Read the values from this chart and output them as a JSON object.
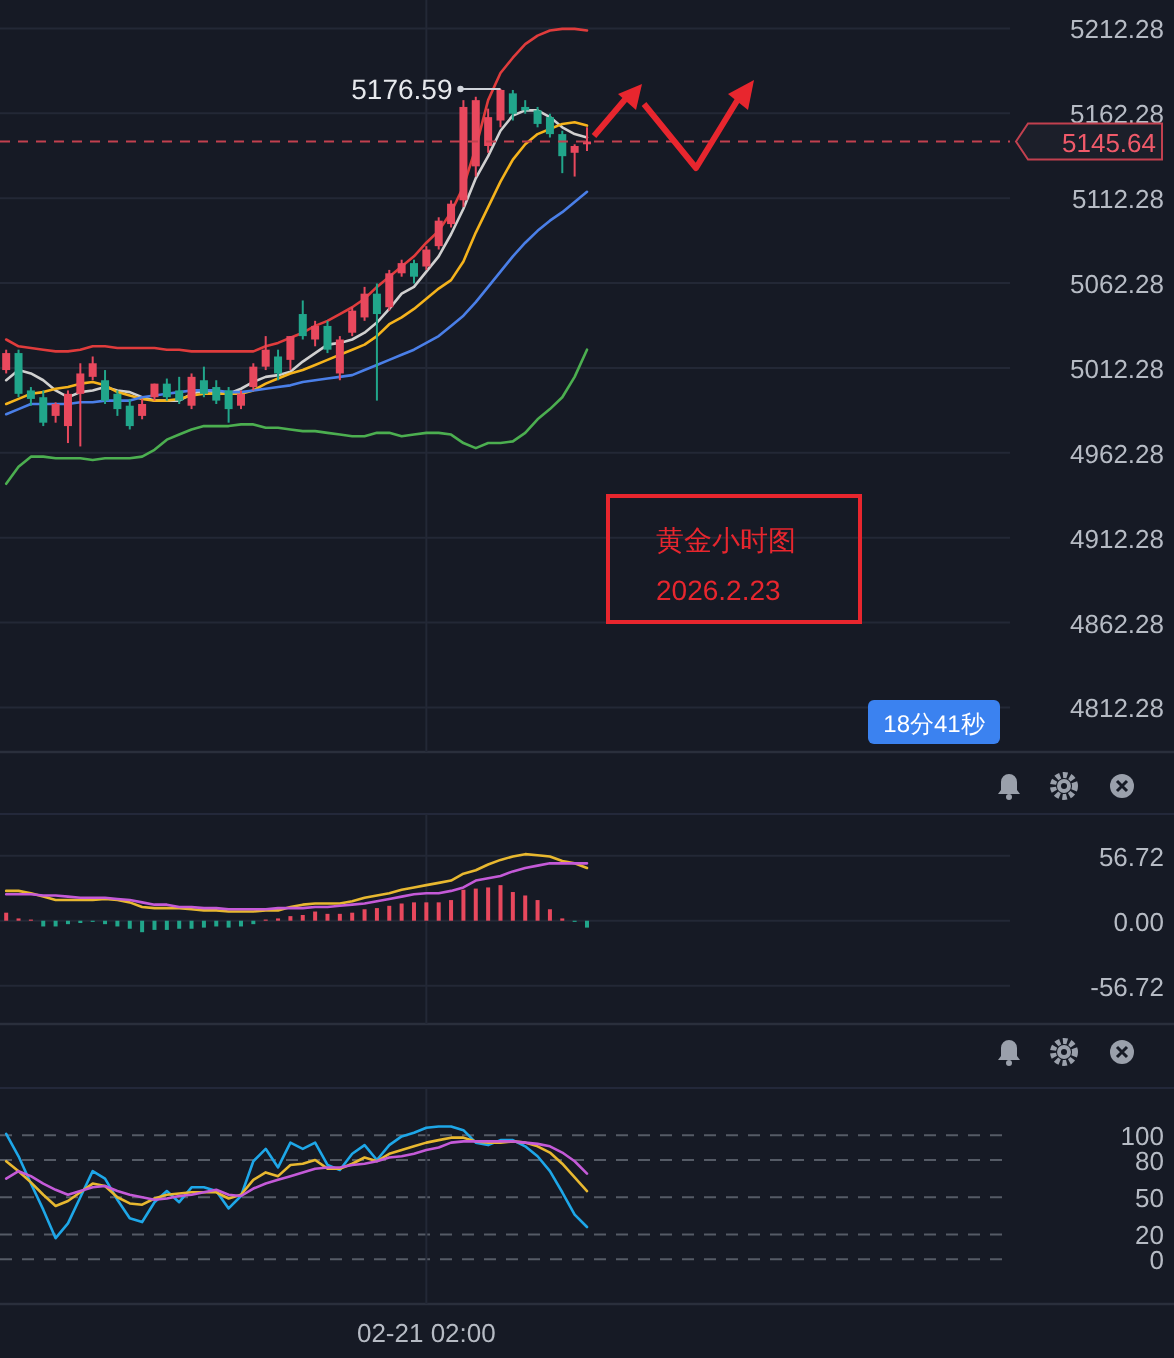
{
  "chart_data": [
    {
      "type": "candlestick",
      "tick_labels": "y",
      "grid": true,
      "categories": [
        null,
        null,
        null,
        null,
        null,
        null,
        null,
        null,
        null,
        null,
        null,
        null,
        null,
        null,
        null,
        null,
        null,
        null,
        null,
        null,
        null,
        null,
        null,
        null,
        null,
        null,
        null,
        null,
        null,
        null,
        null,
        null,
        null,
        null,
        null,
        null,
        null,
        null,
        null,
        null,
        null,
        null,
        null,
        null,
        null,
        null,
        null,
        null,
        null,
        null,
        null,
        null,
        null,
        null,
        null,
        null,
        null,
        null,
        null,
        null,
        null,
        null,
        null,
        null,
        null,
        null,
        null,
        null,
        null,
        null,
        null,
        null,
        null,
        null,
        null,
        null,
        null,
        null,
        null,
        null,
        null,
        null,
        null,
        null,
        null,
        null,
        null,
        null,
        null,
        null,
        null,
        null,
        null,
        null,
        null
      ],
      "ohlc": [
        [
          5011,
          5023,
          5009,
          5021
        ],
        [
          5021,
          5023,
          4995,
          4997
        ],
        [
          4999,
          5001,
          4990,
          4994
        ],
        [
          4995,
          4999,
          4978,
          4980
        ],
        [
          4984,
          4992,
          4980,
          4991
        ],
        [
          4978,
          4999,
          4968,
          4997
        ],
        [
          4997,
          5015,
          4966,
          5009
        ],
        [
          5007,
          5019,
          5005,
          5015
        ],
        [
          5005,
          5011,
          4991,
          4993
        ],
        [
          4997,
          4999,
          4984,
          4988
        ],
        [
          4990,
          4994,
          4976,
          4978
        ],
        [
          4984,
          4994,
          4982,
          4991
        ],
        [
          4995,
          5003,
          4993,
          5003
        ],
        [
          5003,
          5006,
          4993,
          4995
        ],
        [
          4999,
          5007,
          4991,
          4993
        ],
        [
          4990,
          5009,
          4988,
          5007
        ],
        [
          5005,
          5013,
          4995,
          4997
        ],
        [
          5001,
          5005,
          4991,
          4993
        ],
        [
          4999,
          5001,
          4980,
          4988
        ],
        [
          4990,
          4999,
          4988,
          4997
        ],
        [
          5001,
          5015,
          4999,
          5013
        ],
        [
          5013,
          5031,
          5011,
          5023
        ],
        [
          5019,
          5023,
          5005,
          5009
        ],
        [
          5017,
          5031,
          5011,
          5031
        ],
        [
          5044,
          5052,
          5029,
          5031
        ],
        [
          5029,
          5040,
          5025,
          5037
        ],
        [
          5037,
          5040,
          5021,
          5023
        ],
        [
          5009,
          5031,
          5005,
          5029
        ],
        [
          5033,
          5048,
          5031,
          5046
        ],
        [
          5042,
          5060,
          5040,
          5056
        ],
        [
          5056,
          5062,
          4993,
          5044
        ],
        [
          5048,
          5070,
          5046,
          5068
        ],
        [
          5068,
          5076,
          5066,
          5074
        ],
        [
          5074,
          5076,
          5062,
          5066
        ],
        [
          5072,
          5084,
          5070,
          5082
        ],
        [
          5084,
          5101,
          5082,
          5099
        ],
        [
          5097,
          5111,
          5095,
          5109
        ],
        [
          5111,
          5170,
          5107,
          5166
        ],
        [
          5131,
          5172,
          5125,
          5170
        ],
        [
          5143,
          5165,
          5139,
          5160
        ],
        [
          5158,
          5176.59,
          5154,
          5176
        ],
        [
          5174,
          5176,
          5158,
          5162
        ],
        [
          5166,
          5170,
          5162,
          5164
        ],
        [
          5164,
          5166,
          5154,
          5156
        ],
        [
          5160,
          5162,
          5148,
          5150
        ],
        [
          5150,
          5152,
          5127,
          5137
        ],
        [
          5139,
          5144,
          5125,
          5143
        ],
        [
          5144,
          5154,
          5140,
          5145.64
        ],
        null,
        null,
        null,
        null,
        null,
        null,
        null,
        null,
        null,
        null,
        null,
        null,
        null,
        null,
        null,
        null,
        null,
        null,
        null,
        null,
        null,
        null,
        null,
        null,
        null,
        null,
        null,
        null,
        null,
        null,
        null,
        null,
        null,
        null,
        null,
        null,
        null,
        null,
        null,
        null,
        null,
        null,
        null,
        null,
        null,
        null,
        null
      ],
      "colors": [
        "#e8485d",
        "#21a68b",
        "#21a68b",
        "#21a68b",
        "#e8485d",
        "#e8485d",
        "#e8485d",
        "#e8485d",
        "#21a68b",
        "#21a68b",
        "#21a68b",
        "#e8485d",
        "#e8485d",
        "#21a68b",
        "#21a68b",
        "#e8485d",
        "#21a68b",
        "#21a68b",
        "#21a68b",
        "#e8485d",
        "#e8485d",
        "#e8485d",
        "#21a68b",
        "#e8485d",
        "#21a68b",
        "#e8485d",
        "#21a68b",
        "#e8485d",
        "#e8485d",
        "#e8485d",
        "#21a68b",
        "#e8485d",
        "#e8485d",
        "#21a68b",
        "#e8485d",
        "#e8485d",
        "#e8485d",
        "#e8485d",
        "#e8485d",
        "#e8485d",
        "#e8485d",
        "#21a68b",
        "#21a68b",
        "#21a68b",
        "#21a68b",
        "#21a68b",
        "#e8485d",
        "#e8485d",
        null,
        null,
        null,
        null,
        null,
        null,
        null,
        null,
        null,
        null,
        null,
        null,
        null,
        null,
        null,
        null,
        null,
        null,
        null,
        null,
        null,
        null,
        null,
        null,
        null,
        null,
        null,
        null,
        null,
        null,
        null,
        null,
        null,
        null,
        null,
        null,
        null,
        null,
        null,
        null,
        null,
        null,
        null,
        null,
        null,
        null,
        null
      ],
      "series": [
        {
          "type": "line",
          "color": "#e03c3c",
          "values": [
            5029,
            5025,
            5024,
            5023,
            5022,
            5022,
            5023,
            5025,
            5025,
            5024,
            5024,
            5024,
            5024,
            5023,
            5023,
            5022,
            5022,
            5022,
            5022,
            5022,
            5022,
            5025,
            5027,
            5030,
            5033,
            5037,
            5040,
            5044,
            5048,
            5053,
            5060,
            5066,
            5072,
            5078,
            5086,
            5093,
            5104,
            5119,
            5142,
            5170,
            5186,
            5195,
            5203,
            5208,
            5211,
            5212,
            5212,
            5211,
            null,
            null,
            null,
            null,
            null,
            null,
            null,
            null,
            null,
            null,
            null,
            null,
            null,
            null,
            null,
            null,
            null,
            null,
            null,
            null,
            null,
            null,
            null,
            null,
            null,
            null,
            null,
            null,
            null,
            null,
            null,
            null,
            null,
            null,
            null,
            null,
            null,
            null,
            null,
            null,
            null,
            null,
            null,
            null,
            null,
            null,
            null
          ]
        },
        {
          "type": "line",
          "color": "#4caf50",
          "values": [
            4944,
            4954,
            4960,
            4960,
            4959,
            4959,
            4959,
            4958,
            4959,
            4959,
            4959,
            4960,
            4964,
            4970,
            4973,
            4976,
            4978,
            4978,
            4978,
            4979,
            4979,
            4977,
            4977,
            4976,
            4975,
            4975,
            4974,
            4973,
            4972,
            4972,
            4974,
            4974,
            4972,
            4973,
            4974,
            4974,
            4973,
            4968,
            4965,
            4968,
            4968,
            4969,
            4974,
            4982,
            4988,
            4995,
            5007,
            5023,
            null,
            null,
            null,
            null,
            null,
            null,
            null,
            null,
            null,
            null,
            null,
            null,
            null,
            null,
            null,
            null,
            null,
            null,
            null,
            null,
            null,
            null,
            null,
            null,
            null,
            null,
            null,
            null,
            null,
            null,
            null,
            null,
            null,
            null,
            null,
            null,
            null,
            null,
            null,
            null,
            null,
            null,
            null,
            null,
            null,
            null,
            null
          ]
        },
        {
          "type": "line",
          "color": "#d0d0d0",
          "values": [
            5005,
            5011,
            5009,
            5005,
            4999,
            4995,
            4998,
            4999,
            5001,
            4999,
            4998,
            4995,
            4993,
            4993,
            4993,
            4997,
            4999,
            4998,
            4997,
            5000,
            5004,
            5007,
            5008,
            5010,
            5016,
            5021,
            5026,
            5027,
            5029,
            5033,
            5039,
            5047,
            5056,
            5060,
            5069,
            5078,
            5091,
            5106,
            5124,
            5137,
            5152,
            5161,
            5164,
            5164,
            5160,
            5154,
            5150,
            5148,
            null,
            null,
            null,
            null,
            null,
            null,
            null,
            null,
            null,
            null,
            null,
            null,
            null,
            null,
            null,
            null,
            null,
            null,
            null,
            null,
            null,
            null,
            null,
            null,
            null,
            null,
            null,
            null,
            null,
            null,
            null,
            null,
            null,
            null,
            null,
            null,
            null,
            null,
            null,
            null,
            null,
            null,
            null,
            null,
            null,
            null,
            null
          ]
        },
        {
          "type": "line",
          "color": "#f5b31c",
          "values": [
            4991,
            4994,
            4997,
            4998,
            5000,
            5001,
            5003,
            5004,
            5002,
            4998,
            4996,
            4994,
            4993,
            4993,
            4994,
            4996,
            4997,
            4997,
            4997,
            4997,
            4999,
            5003,
            5006,
            5009,
            5011,
            5014,
            5017,
            5020,
            5023,
            5026,
            5031,
            5038,
            5042,
            5047,
            5053,
            5059,
            5064,
            5075,
            5092,
            5107,
            5122,
            5135,
            5144,
            5150,
            5153,
            5156,
            5157,
            5155,
            null,
            null,
            null,
            null,
            null,
            null,
            null,
            null,
            null,
            null,
            null,
            null,
            null,
            null,
            null,
            null,
            null,
            null,
            null,
            null,
            null,
            null,
            null,
            null,
            null,
            null,
            null,
            null,
            null,
            null,
            null,
            null,
            null,
            null,
            null,
            null,
            null,
            null,
            null,
            null,
            null,
            null,
            null,
            null,
            null,
            null,
            null
          ]
        },
        {
          "type": "line",
          "color": "#4a7fe8",
          "values": [
            4985,
            4988,
            4991,
            4991,
            4991,
            4991,
            4992,
            4992,
            4993,
            4993,
            4993,
            4995,
            4996,
            4997,
            4998,
            4999,
            4999,
            4999,
            4998,
            4998,
            4999,
            5000,
            5001,
            5002,
            5004,
            5005,
            5006,
            5007,
            5008,
            5011,
            5014,
            5017,
            5020,
            5023,
            5027,
            5031,
            5037,
            5043,
            5051,
            5060,
            5069,
            5078,
            5086,
            5093,
            5099,
            5104,
            5110,
            5116,
            null,
            null,
            null,
            null,
            null,
            null,
            null,
            null,
            null,
            null,
            null,
            null,
            null,
            null,
            null,
            null,
            null,
            null,
            null,
            null,
            null,
            null,
            null,
            null,
            null,
            null,
            null,
            null,
            null,
            null,
            null,
            null,
            null,
            null,
            null,
            null,
            null,
            null,
            null,
            null,
            null,
            null,
            null,
            null,
            null,
            null,
            null
          ]
        }
      ],
      "ylim": [
        4786,
        5229
      ],
      "yticks": [
        5212.28,
        5162.28,
        5112.28,
        5062.28,
        5012.28,
        4962.28,
        4912.28,
        4862.28,
        4812.28
      ],
      "ref_lines": [
        {
          "axis": "y",
          "value": 5145.64,
          "label": "5145.64",
          "color": "#c2404f",
          "line_style": "dashed"
        }
      ],
      "annotations": [
        "5176.59",
        "黄金小时图",
        "2026.2.23",
        "18分41秒"
      ]
    },
    {
      "type": "bar",
      "tick_labels": "y",
      "grid": true,
      "categories": [
        null,
        null,
        null,
        null,
        null,
        null,
        null,
        null,
        null,
        null,
        null,
        null,
        null,
        null,
        null,
        null,
        null,
        null,
        null,
        null,
        null,
        null,
        null,
        null,
        null,
        null,
        null,
        null,
        null,
        null,
        null,
        null,
        null,
        null,
        null,
        null,
        null,
        null,
        null,
        null,
        null,
        null,
        null,
        null,
        null,
        null,
        null,
        null,
        null,
        null,
        null,
        null,
        null,
        null,
        null,
        null,
        null,
        null,
        null,
        null,
        null,
        null,
        null,
        null,
        null,
        null,
        null,
        null,
        null,
        null,
        null,
        null,
        null,
        null,
        null,
        null,
        null,
        null,
        null,
        null,
        null,
        null,
        null,
        null,
        null,
        null,
        null,
        null,
        null,
        null,
        null,
        null,
        null,
        null,
        null
      ],
      "series": [
        {
          "type": "bar",
          "values": [
            7,
            2,
            1,
            -5,
            -5,
            -3,
            -2,
            -1,
            -3,
            -5,
            -7,
            -10,
            -8,
            -8,
            -7,
            -7,
            -6,
            -5,
            -6,
            -5,
            -3,
            1,
            2,
            4,
            5,
            8,
            6,
            6,
            7,
            10,
            11,
            13,
            15,
            16,
            16,
            16,
            18,
            27,
            28,
            29,
            31,
            25,
            22,
            18,
            10,
            2,
            -1,
            -6,
            null,
            null,
            null,
            null,
            null,
            null,
            null,
            null,
            null,
            null,
            null,
            null,
            null,
            null,
            null,
            null,
            null,
            null,
            null,
            null,
            null,
            null,
            null,
            null,
            null,
            null,
            null,
            null,
            null,
            null,
            null,
            null,
            null,
            null,
            null,
            null,
            null,
            null,
            null,
            null,
            null,
            null,
            null,
            null,
            null,
            null,
            null
          ],
          "colors": [
            "#e8485d",
            "#e8485d",
            "#e8485d",
            "#21a68b",
            "#21a68b",
            "#21a68b",
            "#21a68b",
            "#21a68b",
            "#21a68b",
            "#21a68b",
            "#21a68b",
            "#21a68b",
            "#21a68b",
            "#21a68b",
            "#21a68b",
            "#21a68b",
            "#21a68b",
            "#21a68b",
            "#21a68b",
            "#21a68b",
            "#21a68b",
            "#e8485d",
            "#e8485d",
            "#e8485d",
            "#e8485d",
            "#e8485d",
            "#e8485d",
            "#e8485d",
            "#e8485d",
            "#e8485d",
            "#e8485d",
            "#e8485d",
            "#e8485d",
            "#e8485d",
            "#e8485d",
            "#e8485d",
            "#e8485d",
            "#e8485d",
            "#e8485d",
            "#e8485d",
            "#e8485d",
            "#e8485d",
            "#e8485d",
            "#e8485d",
            "#e8485d",
            "#e8485d",
            "#21a68b",
            "#21a68b",
            null,
            null,
            null,
            null,
            null,
            null,
            null,
            null,
            null,
            null,
            null,
            null,
            null,
            null,
            null,
            null,
            null,
            null,
            null,
            null,
            null,
            null,
            null,
            null,
            null,
            null,
            null,
            null,
            null,
            null,
            null,
            null,
            null,
            null,
            null,
            null,
            null,
            null,
            null,
            null,
            null,
            null,
            null,
            null,
            null,
            null,
            null
          ]
        },
        {
          "type": "line",
          "color": "#e8b830",
          "values": [
            26,
            26,
            24,
            21,
            18,
            18,
            18,
            18,
            19,
            18,
            16,
            12,
            11,
            11,
            11,
            10,
            9,
            9,
            8,
            8,
            8,
            9,
            9,
            12,
            14,
            15,
            15,
            15,
            17,
            20,
            22,
            24,
            27,
            29,
            31,
            33,
            35,
            41,
            44,
            49,
            53,
            56,
            58,
            57,
            56,
            52,
            50,
            46,
            null,
            null,
            null,
            null,
            null,
            null,
            null,
            null,
            null,
            null,
            null,
            null,
            null,
            null,
            null,
            null,
            null,
            null,
            null,
            null,
            null,
            null,
            null,
            null,
            null,
            null,
            null,
            null,
            null,
            null,
            null,
            null,
            null,
            null,
            null,
            null,
            null,
            null,
            null,
            null,
            null,
            null,
            null,
            null,
            null,
            null,
            null
          ]
        },
        {
          "type": "line",
          "color": "#c45ad8",
          "values": [
            23,
            23,
            23,
            22,
            22,
            21,
            20,
            20,
            20,
            19,
            18,
            16,
            14,
            14,
            12,
            12,
            11,
            11,
            10,
            10,
            10,
            10,
            11,
            11,
            11,
            12,
            12,
            13,
            14,
            15,
            17,
            19,
            21,
            23,
            24,
            24,
            26,
            29,
            35,
            37,
            39,
            43,
            46,
            48,
            50,
            50,
            50,
            50,
            null,
            null,
            null,
            null,
            null,
            null,
            null,
            null,
            null,
            null,
            null,
            null,
            null,
            null,
            null,
            null,
            null,
            null,
            null,
            null,
            null,
            null,
            null,
            null,
            null,
            null,
            null,
            null,
            null,
            null,
            null,
            null,
            null,
            null,
            null,
            null,
            null,
            null,
            null,
            null,
            null,
            null,
            null,
            null,
            null,
            null,
            null
          ]
        }
      ],
      "ylim": [
        -90,
        93
      ],
      "yticks": [
        56.72,
        {
          "value": 0,
          "label": "0.00"
        },
        {
          "value": -56.72,
          "label": "-56.72"
        }
      ]
    },
    {
      "type": "line",
      "grid": true,
      "categories": [
        null,
        null,
        null,
        null,
        null,
        null,
        null,
        null,
        null,
        null,
        null,
        null,
        null,
        null,
        null,
        null,
        null,
        null,
        null,
        null,
        null,
        null,
        null,
        null,
        null,
        null,
        null,
        null,
        null,
        null,
        null,
        null,
        null,
        null,
        "02-21 02:00",
        null,
        null,
        null,
        null,
        null,
        null,
        null,
        null,
        null,
        null,
        null,
        null,
        null,
        null,
        null,
        null,
        null,
        null,
        null,
        null,
        null,
        null,
        null,
        null,
        null,
        null,
        null,
        null,
        null,
        null,
        null,
        null,
        null,
        null,
        null,
        null,
        null,
        null,
        null,
        null,
        null,
        null,
        null,
        null,
        null,
        null,
        null,
        null,
        null,
        null,
        null,
        null,
        null,
        null,
        null,
        null,
        null,
        null,
        null,
        null
      ],
      "series": [
        {
          "type": "line",
          "color": "#1ea7e8",
          "values": [
            101,
            83,
            61,
            40,
            17,
            29,
            50,
            71,
            65,
            48,
            33,
            30,
            46,
            55,
            46,
            58,
            58,
            55,
            41,
            51,
            79,
            89,
            74,
            94,
            89,
            94,
            76,
            72,
            85,
            92,
            80,
            92,
            99,
            102,
            106,
            107,
            107,
            104,
            94,
            92,
            96,
            96,
            91,
            83,
            71,
            54,
            36,
            26,
            null,
            null,
            null,
            null,
            null,
            null,
            null,
            null,
            null,
            null,
            null,
            null,
            null,
            null,
            null,
            null,
            null,
            null,
            null,
            null,
            null,
            null,
            null,
            null,
            null,
            null,
            null,
            null,
            null,
            null,
            null,
            null,
            null,
            null,
            null,
            null,
            null,
            null,
            null,
            null,
            null,
            null,
            null,
            null,
            null,
            null,
            null
          ]
        },
        {
          "type": "line",
          "color": "#e8b830",
          "values": [
            79,
            71,
            62,
            52,
            43,
            47,
            54,
            61,
            59,
            50,
            45,
            44,
            49,
            52,
            53,
            54,
            54,
            54,
            49,
            52,
            64,
            70,
            67,
            76,
            77,
            80,
            73,
            73,
            77,
            82,
            79,
            85,
            88,
            91,
            94,
            96,
            98,
            98,
            95,
            94,
            94,
            95,
            94,
            91,
            86,
            77,
            66,
            55,
            null,
            null,
            null,
            null,
            null,
            null,
            null,
            null,
            null,
            null,
            null,
            null,
            null,
            null,
            null,
            null,
            null,
            null,
            null,
            null,
            null,
            null,
            null,
            null,
            null,
            null,
            null,
            null,
            null,
            null,
            null,
            null,
            null,
            null,
            null,
            null,
            null,
            null,
            null,
            null,
            null,
            null,
            null,
            null,
            null,
            null,
            null
          ]
        },
        {
          "type": "line",
          "color": "#c45ad8",
          "values": [
            65,
            71,
            67,
            61,
            56,
            52,
            55,
            58,
            59,
            55,
            52,
            50,
            48,
            49,
            51,
            52,
            54,
            56,
            52,
            51,
            57,
            61,
            64,
            67,
            70,
            73,
            74,
            74,
            76,
            77,
            79,
            82,
            83,
            85,
            88,
            90,
            94,
            95,
            95,
            95,
            95,
            95,
            94,
            93,
            91,
            86,
            79,
            69,
            null,
            null,
            null,
            null,
            null,
            null,
            null,
            null,
            null,
            null,
            null,
            null,
            null,
            null,
            null,
            null,
            null,
            null,
            null,
            null,
            null,
            null,
            null,
            null,
            null,
            null,
            null,
            null,
            null,
            null,
            null,
            null,
            null,
            null,
            null,
            null,
            null,
            null,
            null,
            null,
            null,
            null,
            null,
            null,
            null,
            null,
            null
          ]
        }
      ],
      "ylim": [
        -36,
        138
      ],
      "yticks": [
        100,
        80,
        50,
        20,
        0
      ]
    }
  ]
}
